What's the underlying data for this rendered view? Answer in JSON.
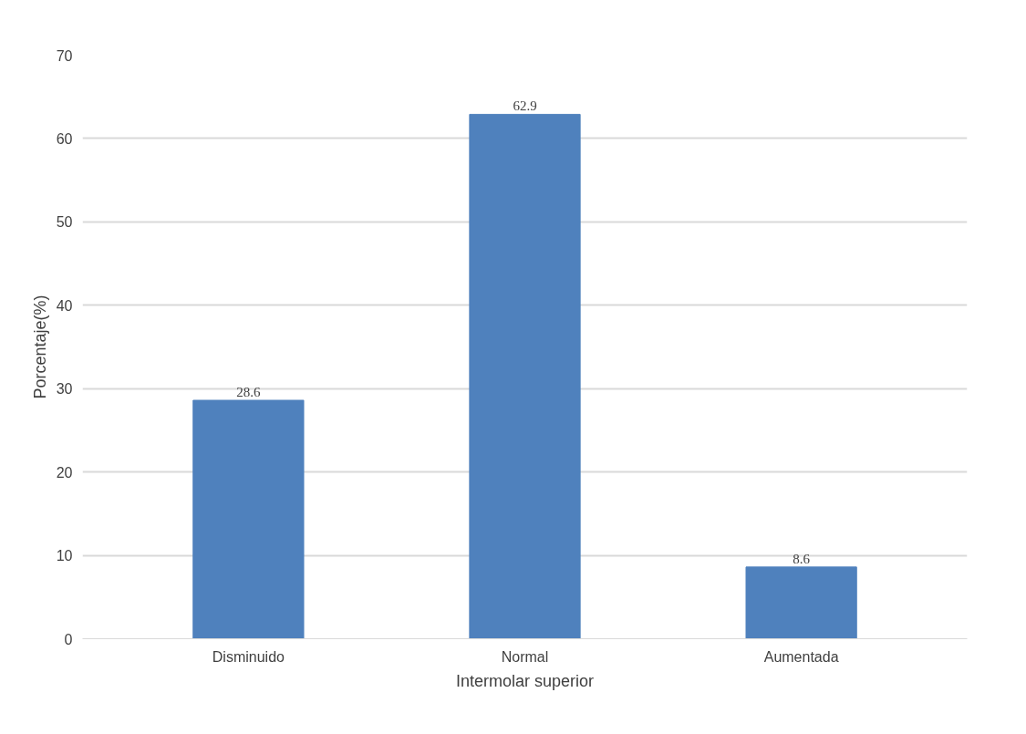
{
  "chart_data": {
    "type": "bar",
    "xlabel": "Intermolar superior",
    "ylabel": "Porcentaje(%)",
    "categories": [
      "Disminuido",
      "Normal",
      "Aumentada"
    ],
    "values": [
      28.6,
      62.9,
      8.6
    ],
    "color": "#4f81bd",
    "ylim": [
      0,
      70
    ],
    "yticks": [
      0,
      10,
      20,
      30,
      40,
      50,
      60,
      70
    ],
    "grid": "y",
    "data_labels": true
  }
}
